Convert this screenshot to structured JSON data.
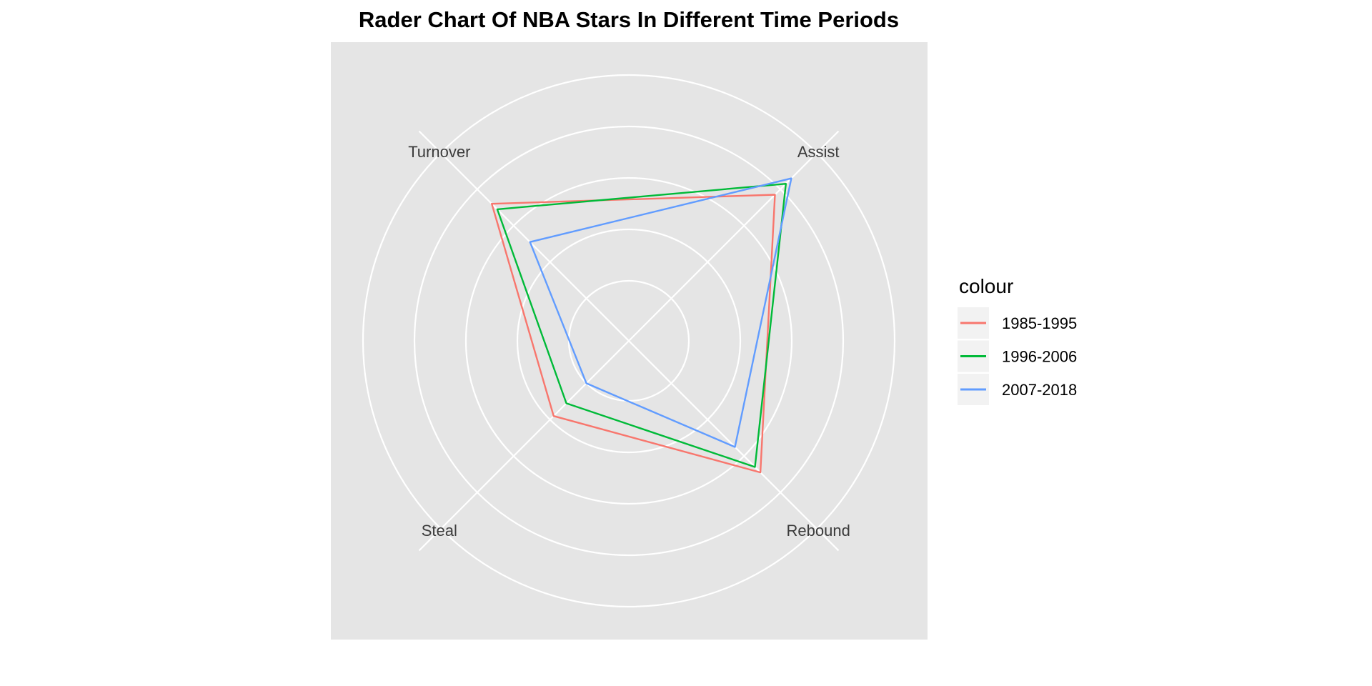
{
  "chart_data": {
    "type": "radar",
    "title": "Rader Chart Of NBA Stars In Different Time Periods",
    "axes": [
      "Assist",
      "Rebound",
      "Steal",
      "Turnover"
    ],
    "rlim": [
      0,
      4
    ],
    "grid": true,
    "legend": {
      "title": "colour",
      "position": "right"
    },
    "series": [
      {
        "name": "1985-1995",
        "color": "#F8766D",
        "values": [
          2.85,
          2.45,
          0.9,
          2.6
        ]
      },
      {
        "name": "1996-2006",
        "color": "#00BA38",
        "values": [
          3.15,
          2.3,
          0.55,
          2.45
        ]
      },
      {
        "name": "2007-2018",
        "color": "#619CFF",
        "values": [
          3.3,
          1.75,
          0.0,
          1.55
        ]
      }
    ]
  }
}
